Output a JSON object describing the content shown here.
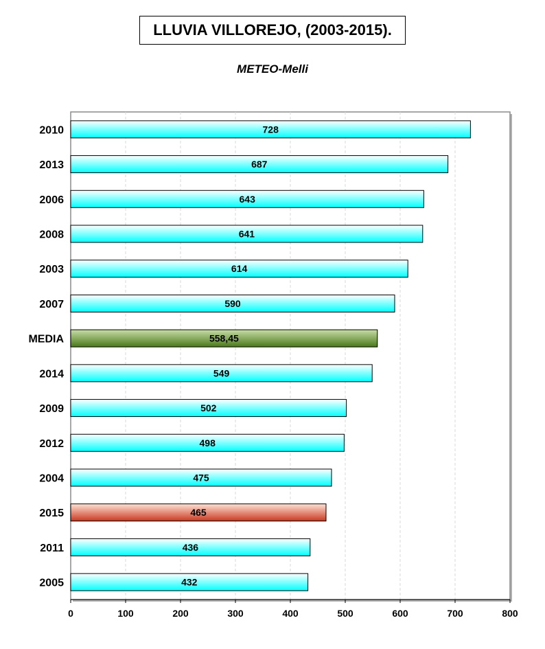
{
  "chart_data": {
    "type": "bar",
    "orientation": "horizontal",
    "title": "LLUVIA VILLOREJO, (2003-2015).",
    "subtitle": "METEO-Melli",
    "xlabel": "",
    "ylabel": "",
    "xlim": [
      0,
      800
    ],
    "xticks": [
      "0",
      "100",
      "200",
      "300",
      "400",
      "500",
      "600",
      "700",
      "800"
    ],
    "grid": true,
    "categories": [
      "2010",
      "2013",
      "2006",
      "2008",
      "2003",
      "2007",
      "MEDIA",
      "2014",
      "2009",
      "2012",
      "2004",
      "2015",
      "2011",
      "2005"
    ],
    "values": [
      728,
      687,
      643,
      641,
      614,
      590,
      558.45,
      549,
      502,
      498,
      475,
      465,
      436,
      432
    ],
    "value_labels": [
      "728",
      "687",
      "643",
      "641",
      "614",
      "590",
      "558,45",
      "549",
      "502",
      "498",
      "475",
      "465",
      "436",
      "432"
    ],
    "colors": {
      "default_top": "#ffffff",
      "default_bottom": "#00ffff",
      "media_top": "#c8dca8",
      "media_bottom": "#4a7a18",
      "highlight_top": "#ffe2d4",
      "highlight_bottom": "#c83820"
    },
    "special": {
      "MEDIA": "media",
      "2015": "highlight"
    }
  }
}
